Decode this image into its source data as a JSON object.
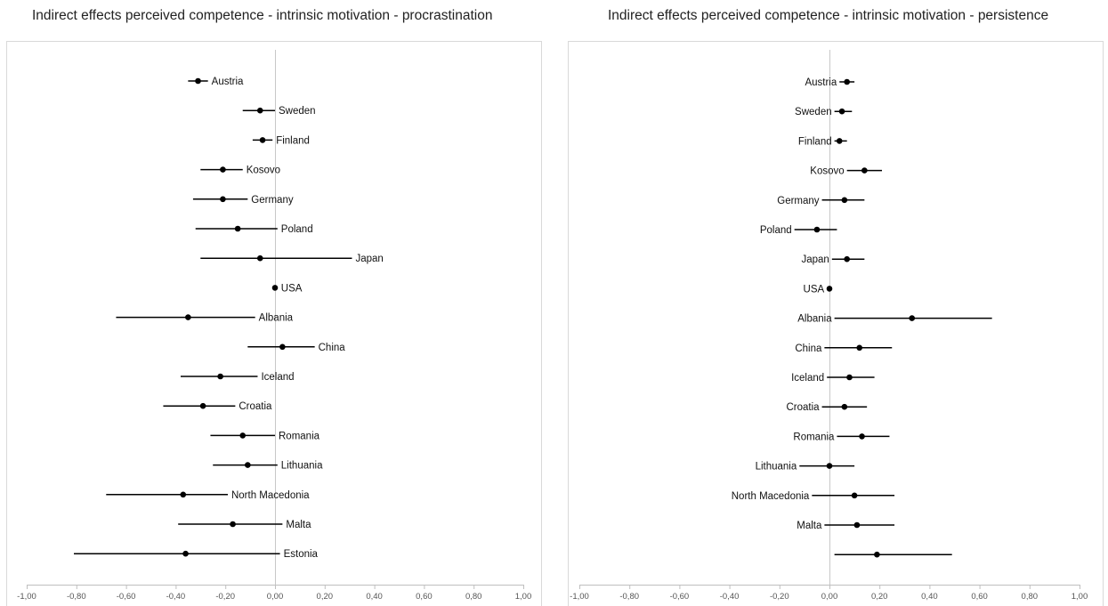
{
  "chart_data": [
    {
      "type": "scatter",
      "title": "Indirect effects perceived competence - intrinsic motivation - procrastination",
      "label_side": "right",
      "xlim": [
        -1.0,
        1.0
      ],
      "xticks": [
        "-1,00",
        "-0,80",
        "-0,60",
        "-0,40",
        "-0,20",
        "0,00",
        "0,20",
        "0,40",
        "0,60",
        "0,80",
        "1,00"
      ],
      "tick_values": [
        -1.0,
        -0.8,
        -0.6,
        -0.4,
        -0.2,
        0.0,
        0.2,
        0.4,
        0.6,
        0.8,
        1.0
      ],
      "grid": false,
      "points": [
        {
          "country": "Austria",
          "value": -0.31,
          "lower": -0.35,
          "upper": -0.27
        },
        {
          "country": "Sweden",
          "value": -0.06,
          "lower": -0.13,
          "upper": 0.0
        },
        {
          "country": "Finland",
          "value": -0.05,
          "lower": -0.09,
          "upper": -0.01
        },
        {
          "country": "Kosovo",
          "value": -0.21,
          "lower": -0.3,
          "upper": -0.13
        },
        {
          "country": "Germany",
          "value": -0.21,
          "lower": -0.33,
          "upper": -0.11
        },
        {
          "country": "Poland",
          "value": -0.15,
          "lower": -0.32,
          "upper": 0.01
        },
        {
          "country": "Japan",
          "value": -0.06,
          "lower": -0.3,
          "upper": 0.31
        },
        {
          "country": "USA",
          "value": 0.0,
          "lower": -0.01,
          "upper": 0.01
        },
        {
          "country": "Albania",
          "value": -0.35,
          "lower": -0.64,
          "upper": -0.08
        },
        {
          "country": "China",
          "value": 0.03,
          "lower": -0.11,
          "upper": 0.16
        },
        {
          "country": "Iceland",
          "value": -0.22,
          "lower": -0.38,
          "upper": -0.07
        },
        {
          "country": "Croatia",
          "value": -0.29,
          "lower": -0.45,
          "upper": -0.16
        },
        {
          "country": "Romania",
          "value": -0.13,
          "lower": -0.26,
          "upper": 0.0
        },
        {
          "country": "Lithuania",
          "value": -0.11,
          "lower": -0.25,
          "upper": 0.01
        },
        {
          "country": "North Macedonia",
          "value": -0.37,
          "lower": -0.68,
          "upper": -0.19
        },
        {
          "country": "Malta",
          "value": -0.17,
          "lower": -0.39,
          "upper": 0.03
        },
        {
          "country": "Estonia",
          "value": -0.36,
          "lower": -0.81,
          "upper": 0.02
        }
      ]
    },
    {
      "type": "scatter",
      "title": "Indirect effects perceived competence - intrinsic motivation - persistence",
      "label_side": "left",
      "xlim": [
        -1.0,
        1.0
      ],
      "xticks": [
        "-1,00",
        "-0,80",
        "-0,60",
        "-0,40",
        "-0,20",
        "0,00",
        "0,20",
        "0,40",
        "0,60",
        "0,80",
        "1,00"
      ],
      "tick_values": [
        -1.0,
        -0.8,
        -0.6,
        -0.4,
        -0.2,
        0.0,
        0.2,
        0.4,
        0.6,
        0.8,
        1.0
      ],
      "grid": false,
      "points": [
        {
          "country": "Austria",
          "value": 0.07,
          "lower": 0.04,
          "upper": 0.1
        },
        {
          "country": "Sweden",
          "value": 0.05,
          "lower": 0.02,
          "upper": 0.09
        },
        {
          "country": "Finland",
          "value": 0.04,
          "lower": 0.02,
          "upper": 0.07
        },
        {
          "country": "Kosovo",
          "value": 0.14,
          "lower": 0.07,
          "upper": 0.21
        },
        {
          "country": "Germany",
          "value": 0.06,
          "lower": -0.03,
          "upper": 0.14
        },
        {
          "country": "Poland",
          "value": -0.05,
          "lower": -0.14,
          "upper": 0.03
        },
        {
          "country": "Japan",
          "value": 0.07,
          "lower": 0.01,
          "upper": 0.14
        },
        {
          "country": "USA",
          "value": 0.0,
          "lower": -0.01,
          "upper": 0.01
        },
        {
          "country": "Albania",
          "value": 0.33,
          "lower": 0.02,
          "upper": 0.65
        },
        {
          "country": "China",
          "value": 0.12,
          "lower": -0.02,
          "upper": 0.25
        },
        {
          "country": "Iceland",
          "value": 0.08,
          "lower": -0.01,
          "upper": 0.18
        },
        {
          "country": "Croatia",
          "value": 0.06,
          "lower": -0.03,
          "upper": 0.15
        },
        {
          "country": "Romania",
          "value": 0.13,
          "lower": 0.03,
          "upper": 0.24
        },
        {
          "country": "Lithuania",
          "value": 0.0,
          "lower": -0.12,
          "upper": 0.1
        },
        {
          "country": "North Macedonia",
          "value": 0.1,
          "lower": -0.07,
          "upper": 0.26
        },
        {
          "country": "Malta",
          "value": 0.11,
          "lower": -0.02,
          "upper": 0.26
        },
        {
          "country": "",
          "value": 0.19,
          "lower": 0.02,
          "upper": 0.49
        }
      ]
    }
  ],
  "colors": {
    "marker": "#000000",
    "zero_line": "#c8c8c8",
    "frame": "#d9d9d9",
    "axis": "#bfbfbf",
    "tick_text": "#555555",
    "text": "#111111"
  }
}
